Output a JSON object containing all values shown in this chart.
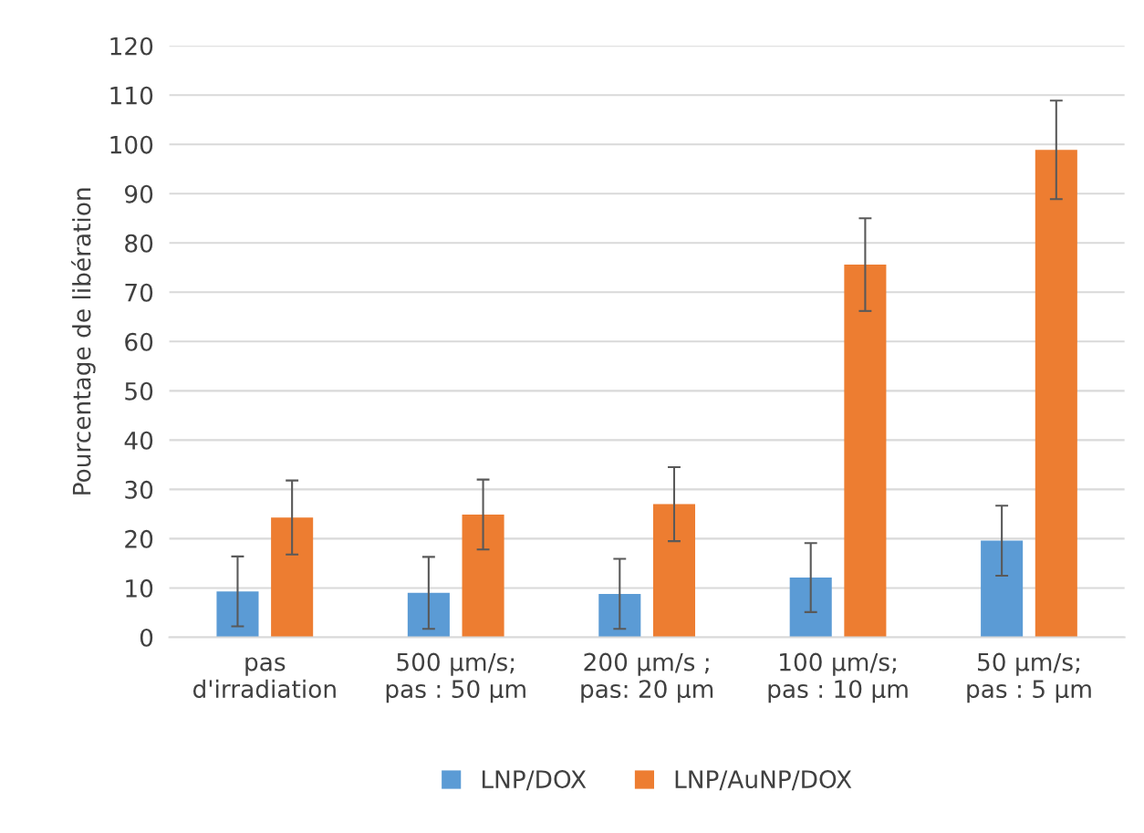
{
  "chart_data": {
    "type": "bar",
    "ylabel": "Pourcentage de libération",
    "categories": [
      "pas\nd'irradiation",
      "500 µm/s;\npas : 50 µm",
      "200 µm/s ;\npas: 20 µm",
      "100 µm/s;\npas : 10 µm",
      "50 µm/s;\npas : 5 µm"
    ],
    "series": [
      {
        "name": "LNP/DOX",
        "color": "#5b9bd5",
        "values": [
          9.3,
          9.0,
          8.8,
          12.1,
          19.6
        ],
        "errors": [
          7.1,
          7.3,
          7.1,
          7.0,
          7.1
        ]
      },
      {
        "name": "LNP/AuNP/DOX",
        "color": "#ed7d31",
        "values": [
          24.3,
          24.9,
          27.0,
          75.6,
          98.9
        ],
        "errors": [
          7.5,
          7.1,
          7.5,
          9.4,
          10.0
        ]
      }
    ],
    "ylim": [
      0,
      120
    ],
    "yticks": [
      0,
      10,
      20,
      30,
      40,
      50,
      60,
      70,
      80,
      90,
      100,
      110,
      120
    ],
    "grid": "y",
    "legend": "bottom"
  }
}
